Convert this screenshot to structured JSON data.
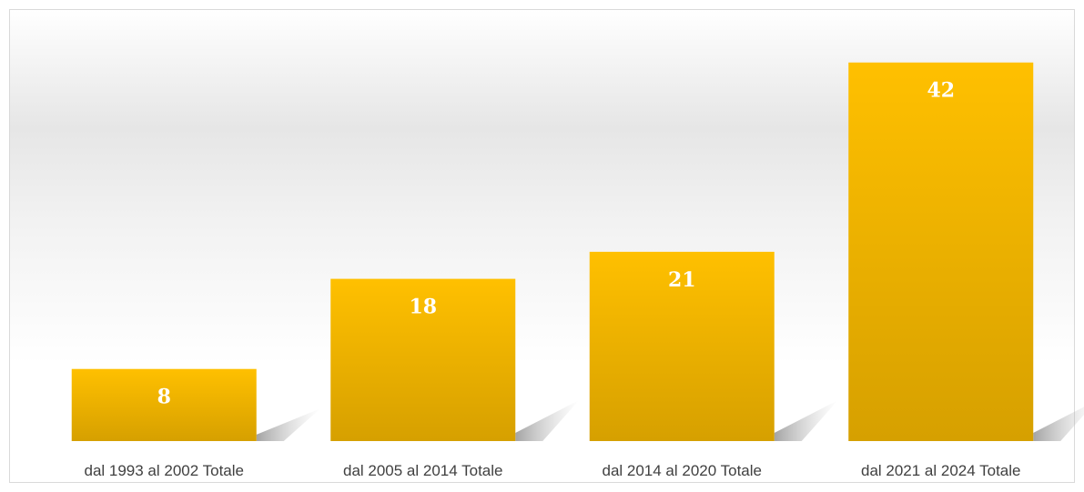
{
  "chart_data": {
    "type": "bar",
    "categories": [
      "dal 1993 al 2002 Totale",
      "dal 2005 al 2014 Totale",
      "dal 2014 al 2020 Totale",
      "dal 2021 al 2024 Totale"
    ],
    "values": [
      8,
      18,
      21,
      42
    ],
    "color": "#ffc000",
    "ylim": [
      0,
      45
    ]
  }
}
